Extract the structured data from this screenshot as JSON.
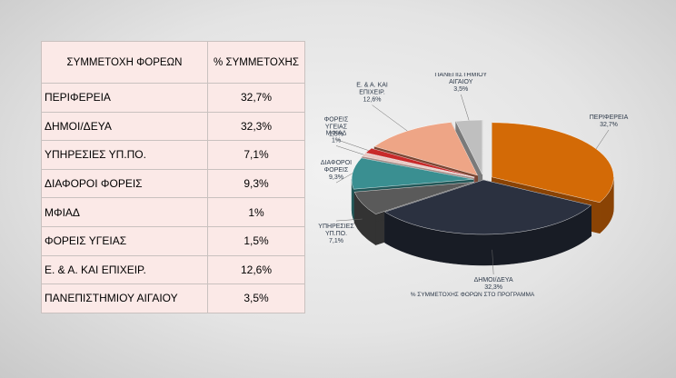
{
  "table": {
    "headers": [
      "ΣΥΜΜΕΤΟΧΗ ΦΟΡΕΩΝ",
      "% ΣΥΜΜΕΤΟΧΗΣ"
    ],
    "rows": [
      [
        "ΠΕΡΙΦΕΡΕΙΑ",
        "32,7%"
      ],
      [
        "ΔΗΜΟΙ/ΔΕΥΑ",
        "32,3%"
      ],
      [
        "ΥΠΗΡΕΣΙΕΣ ΥΠ.ΠΟ.",
        "7,1%"
      ],
      [
        "ΔΙΑΦΟΡΟΙ ΦΟΡΕΙΣ",
        "9,3%"
      ],
      [
        "ΜΦΙΑΔ",
        "1%"
      ],
      [
        "ΦΟΡΕΙΣ ΥΓΕΙΑΣ",
        "1,5%"
      ],
      [
        "Ε. & Α. ΚΑΙ ΕΠΙΧΕΙΡ.",
        "12,6%"
      ],
      [
        "ΠΑΝΕΠΙΣΤΗΜΙΟΥ ΑΙΓΑΙΟΥ",
        "3,5%"
      ]
    ]
  },
  "chart_data": {
    "type": "pie",
    "title": "% ΣΥΜΜΕΤΟΧΗΣ ΦΟΡΩΝ ΣΤΟ ΠΡΟΓΡΑΜΜΑ",
    "slices": [
      {
        "label": "ΠΕΡΙΦΕΡΕΙΑ",
        "value": 32.7,
        "value_label": "32,7%",
        "color": "#d36a06",
        "side": "#8a4304",
        "explode": 1
      },
      {
        "label": "ΔΗΜΟΙ/ΔΕΥΑ",
        "value": 32.3,
        "value_label": "32,3%",
        "color": "#2b3140",
        "side": "#181c25",
        "explode": 0
      },
      {
        "label": "ΥΠΗΡΕΣΙΕΣ ΥΠ.ΠΟ.",
        "value": 7.1,
        "value_label": "7,1%",
        "color": "#5a5a5a",
        "side": "#333333",
        "explode": 1
      },
      {
        "label": "ΔΙΑΦΟΡΟΙ ΦΟΡΕΙΣ",
        "value": 9.3,
        "value_label": "9,3%",
        "color": "#3a8f91",
        "side": "#225859",
        "explode": 1
      },
      {
        "label": "ΜΦΙΑΔ",
        "value": 1,
        "value_label": "1%",
        "color": "#e8c7c1",
        "side": "#a98c87",
        "explode": 1
      },
      {
        "label": "ΦΟΡΕΙΣ ΥΓΕΙΑΣ",
        "value": 1.5,
        "value_label": "1,5%",
        "color": "#c82a2a",
        "side": "#821818",
        "explode": 1
      },
      {
        "label": "Ε. & Α. ΚΑΙ ΕΠΙΧΕΙΡ.",
        "value": 12.6,
        "value_label": "12,6%",
        "color": "#eea586",
        "side": "#7a4632",
        "explode": 1
      },
      {
        "label": "ΠΑΝΕΠΙΣΤΗΜΙΟΥ ΑΙΓΑΙΟΥ",
        "value": 3.5,
        "value_label": "3,5%",
        "color": "#bfbfbf",
        "side": "#7a7a7a",
        "explode": 1
      }
    ]
  }
}
